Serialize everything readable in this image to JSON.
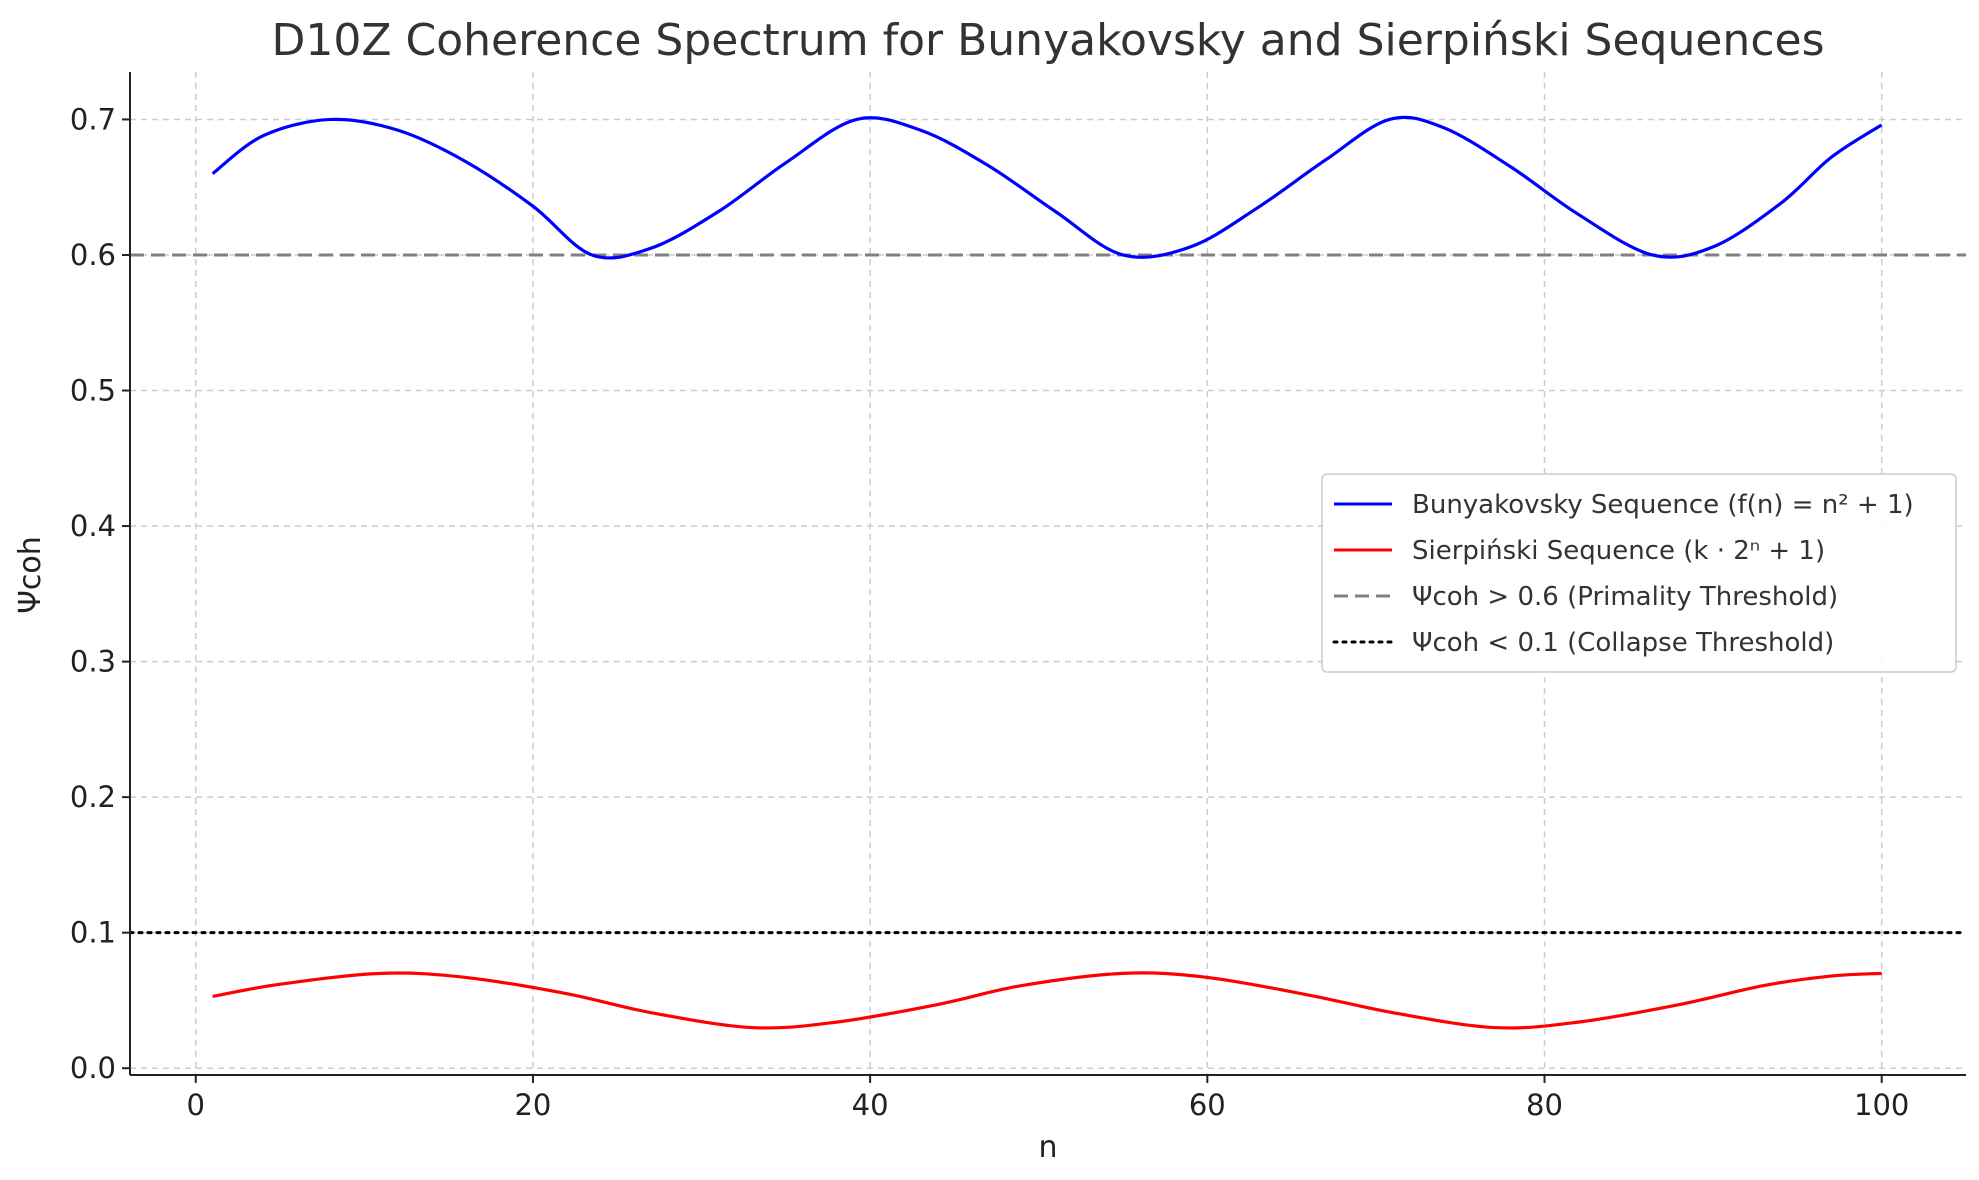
{
  "chart_data": {
    "type": "line",
    "title": "D10Z Coherence Spectrum for Bunyakovsky and Sierpiński Sequences",
    "xlabel": "n",
    "ylabel": "Ψcoh",
    "xlim": [
      -3.9,
      105
    ],
    "ylim": [
      -0.005,
      0.735
    ],
    "xticks": [
      0,
      20,
      40,
      60,
      80,
      100
    ],
    "yticks": [
      0.0,
      0.1,
      0.2,
      0.3,
      0.4,
      0.5,
      0.6,
      0.7
    ],
    "grid": true,
    "legend_position": "center-right",
    "series": [
      {
        "name": "Bunyakovsky Sequence (f(n) = n² + 1)",
        "color": "#0000ff",
        "style": "solid",
        "x": [
          1,
          4,
          8,
          12,
          16,
          20,
          23.5,
          27,
          31,
          35,
          39.2,
          43,
          47,
          51,
          55,
          59,
          63,
          67,
          70.8,
          74,
          78,
          82,
          86.4,
          90,
          94,
          97,
          100
        ],
        "y": [
          0.66,
          0.688,
          0.7,
          0.692,
          0.669,
          0.636,
          0.6,
          0.605,
          0.632,
          0.668,
          0.7,
          0.692,
          0.666,
          0.632,
          0.6,
          0.606,
          0.635,
          0.67,
          0.7,
          0.694,
          0.665,
          0.63,
          0.6,
          0.606,
          0.638,
          0.672,
          0.696
        ]
      },
      {
        "name": "Sierpiński Sequence (k · 2ⁿ + 1)",
        "color": "#ff0000",
        "style": "solid",
        "x": [
          1,
          5,
          11,
          16,
          22,
          27,
          33,
          38,
          44,
          49,
          55,
          60,
          66,
          71,
          77,
          82,
          88,
          93,
          97,
          100
        ],
        "y": [
          0.053,
          0.062,
          0.07,
          0.067,
          0.055,
          0.041,
          0.03,
          0.034,
          0.047,
          0.061,
          0.07,
          0.067,
          0.054,
          0.041,
          0.03,
          0.034,
          0.047,
          0.061,
          0.068,
          0.07
        ]
      },
      {
        "name": "Ψcoh > 0.6 (Primality Threshold)",
        "color": "#808080",
        "style": "dashed",
        "x": [
          -3.9,
          105
        ],
        "y": [
          0.6,
          0.6
        ]
      },
      {
        "name": "Ψcoh < 0.1 (Collapse Threshold)",
        "color": "#000000",
        "style": "dotted",
        "x": [
          -3.9,
          105
        ],
        "y": [
          0.1,
          0.1
        ]
      }
    ]
  }
}
